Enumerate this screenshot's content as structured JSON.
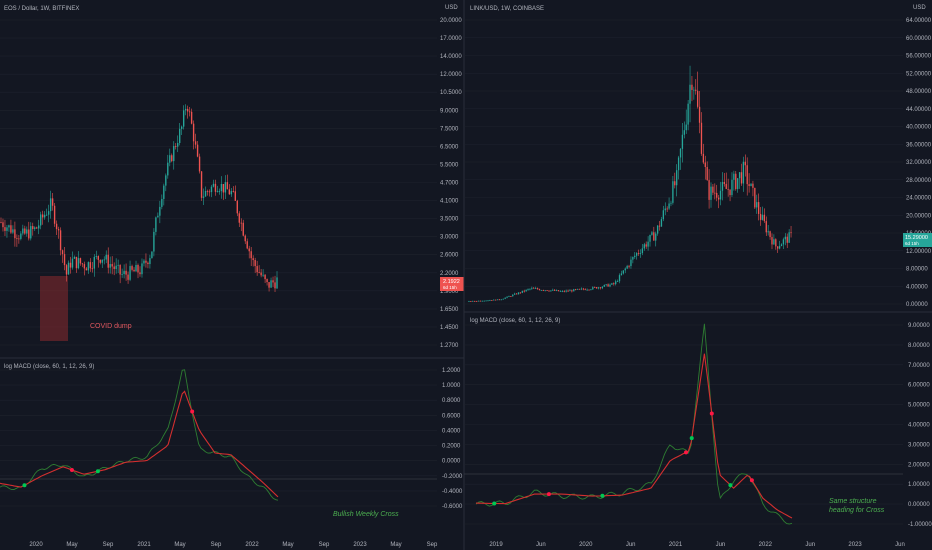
{
  "colors": {
    "background": "#131722",
    "grid": "#1e222d",
    "up": "#26a69a",
    "down": "#ef5350",
    "axis_text": "#b2b5be",
    "macd_line": "#2e7d32",
    "signal_line": "#d32f2f",
    "cross_dot_red": "#ff1744",
    "cross_dot_green": "#00c853",
    "covid_box": "#8b2a2e",
    "divider": "#2a2e39"
  },
  "left_panel": {
    "title": "EOS / Dollar, 1W, BITFINEX",
    "price_axis_labels": [
      "20.0000",
      "17.0000",
      "14.0000",
      "12.0000",
      "10.5000",
      "9.0000",
      "7.5000",
      "6.5000",
      "5.5000",
      "4.7000",
      "4.1000",
      "3.5000",
      "3.0000",
      "2.6000",
      "2.2000",
      "1.9000",
      "1.6500",
      "1.4500",
      "1.2700"
    ],
    "price_axis_top_label": "USD",
    "last_price": "2.1922",
    "last_price_sub": "6d 15h",
    "annotation_covid": "COVID dump",
    "macd_title": "log MACD (close, 60, 1, 12, 26, 9)",
    "macd_axis_labels": [
      "1.2000",
      "1.0000",
      "0.8000",
      "0.6000",
      "0.4000",
      "0.2000",
      "0.0000",
      "-0.2000",
      "-0.4000",
      "-0.6000"
    ],
    "annotation_cross": "Bullish Weekly Cross",
    "time_labels": [
      "2020",
      "May",
      "Sep",
      "2021",
      "May",
      "Sep",
      "2022",
      "May",
      "Sep",
      "2023",
      "May",
      "Sep"
    ]
  },
  "right_panel": {
    "title": "LINK/USD, 1W, COINBASE",
    "price_axis_top_label": "USD",
    "price_axis_labels": [
      "64.00000",
      "60.00000",
      "56.00000",
      "52.00000",
      "48.00000",
      "44.00000",
      "40.00000",
      "36.00000",
      "32.00000",
      "28.00000",
      "24.00000",
      "20.00000",
      "16.00000",
      "12.00000",
      "8.00000",
      "4.00000",
      "0.00000"
    ],
    "last_price": "15.29000",
    "last_price_sub": "6d 15h",
    "macd_title": "log MACD (close, 60, 1, 12, 26, 9)",
    "macd_axis_labels": [
      "9.00000",
      "8.00000",
      "7.00000",
      "6.00000",
      "5.00000",
      "4.00000",
      "3.00000",
      "2.00000",
      "1.00000",
      "0.00000",
      "-1.00000"
    ],
    "annotation_cross_line1": "Same structure",
    "annotation_cross_line2": "heading for Cross",
    "time_labels": [
      "2019",
      "Jun",
      "2020",
      "Jun",
      "2021",
      "Jun",
      "2022",
      "Jun",
      "2023",
      "Jun"
    ]
  },
  "chart_data": [
    {
      "type": "candlestick",
      "title": "EOS / Dollar, 1W, BITFINEX",
      "scale": "log",
      "ylim": [
        1.2,
        21
      ],
      "x": [
        2019.5,
        2019.7,
        2019.85,
        2020.0,
        2020.15,
        2020.2,
        2020.35,
        2020.5,
        2020.7,
        2020.9,
        2021.0,
        2021.15,
        2021.3,
        2021.35,
        2021.5,
        2021.65,
        2021.8,
        2021.9,
        2022.0,
        2022.15,
        2022.25
      ],
      "close": [
        3.6,
        3.2,
        3.4,
        4.2,
        2.3,
        2.6,
        2.5,
        2.7,
        2.3,
        2.4,
        2.8,
        5.5,
        8.0,
        10.0,
        4.5,
        5.0,
        4.6,
        3.5,
        2.6,
        2.1,
        2.2
      ]
    },
    {
      "type": "line",
      "title": "log MACD (close, 60, 1, 12, 26, 9)",
      "ylim": [
        -0.6,
        1.3
      ],
      "x": [
        2019.6,
        2019.8,
        2020.0,
        2020.2,
        2020.4,
        2020.6,
        2020.8,
        2021.0,
        2021.2,
        2021.35,
        2021.5,
        2021.65,
        2021.8,
        2021.95,
        2022.1,
        2022.25
      ],
      "series": [
        {
          "values": [
            -0.35,
            -0.37,
            -0.1,
            -0.05,
            -0.22,
            -0.1,
            0.0,
            0.05,
            0.4,
            1.25,
            0.15,
            0.1,
            0.05,
            -0.2,
            -0.35,
            -0.53
          ]
        },
        {
          "values": [
            -0.3,
            -0.35,
            -0.2,
            -0.08,
            -0.18,
            -0.12,
            -0.02,
            0.0,
            0.2,
            0.95,
            0.4,
            0.1,
            0.08,
            -0.1,
            -0.28,
            -0.48
          ]
        }
      ]
    },
    {
      "type": "candlestick",
      "title": "LINK/USD, 1W, COINBASE",
      "ylim": [
        0,
        65
      ],
      "x": [
        2019.2,
        2019.5,
        2019.8,
        2020.1,
        2020.4,
        2020.6,
        2020.8,
        2021.0,
        2021.2,
        2021.35,
        2021.5,
        2021.7,
        2021.85,
        2022.0,
        2022.15,
        2022.3
      ],
      "close": [
        0.6,
        1.0,
        3.5,
        2.8,
        3.6,
        4.5,
        11.0,
        16.0,
        28.0,
        53.0,
        25.0,
        26.0,
        30.0,
        20.0,
        13.0,
        15.29
      ]
    },
    {
      "type": "line",
      "title": "log MACD (close, 60, 1, 12, 26, 9)",
      "ylim": [
        -1.2,
        9.2
      ],
      "x": [
        2019.0,
        2019.3,
        2019.6,
        2019.9,
        2020.2,
        2020.5,
        2020.8,
        2021.0,
        2021.2,
        2021.35,
        2021.5,
        2021.65,
        2021.8,
        2021.95,
        2022.1,
        2022.25
      ],
      "series": [
        {
          "values": [
            0.0,
            0.05,
            0.6,
            0.4,
            0.35,
            0.55,
            1.0,
            3.0,
            2.5,
            9.0,
            0.1,
            1.2,
            1.6,
            0.0,
            -0.6,
            -1.0
          ],
          "name": ""
        },
        {
          "values": [
            0.05,
            0.02,
            0.5,
            0.5,
            0.4,
            0.45,
            0.8,
            2.2,
            2.7,
            7.6,
            1.5,
            0.8,
            1.5,
            0.3,
            -0.3,
            -0.7
          ],
          "name": ""
        }
      ]
    }
  ]
}
